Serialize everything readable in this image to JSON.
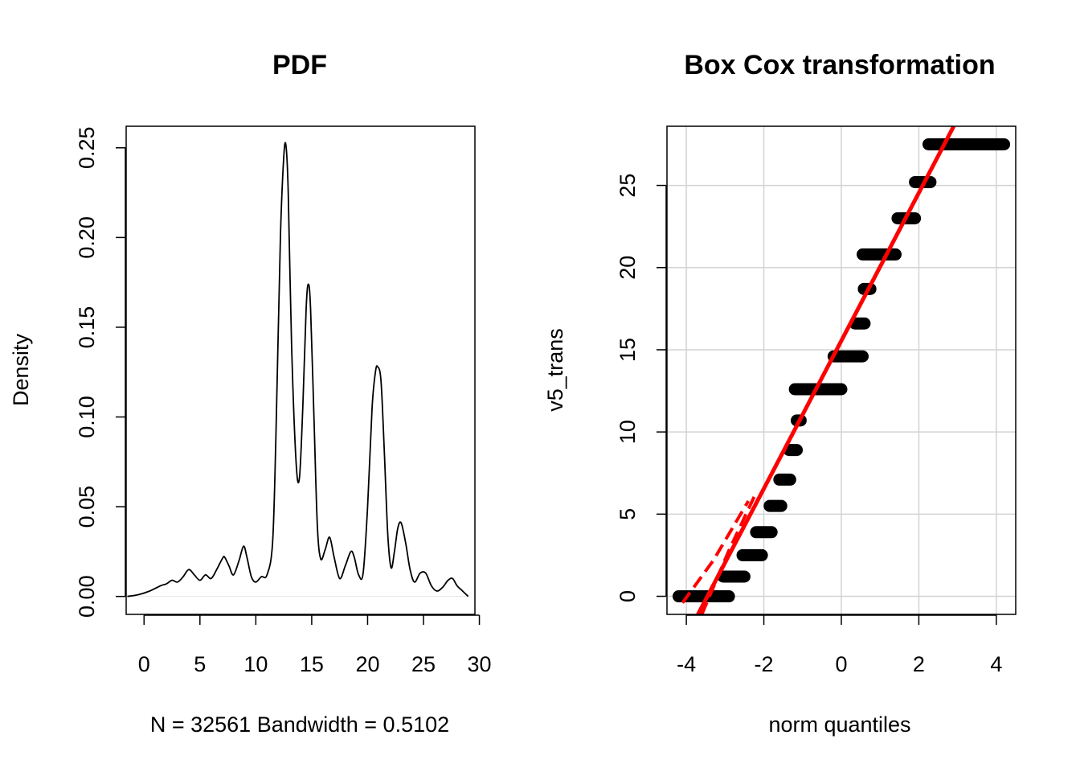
{
  "chart_data": [
    {
      "type": "line",
      "title": "PDF",
      "xlabel": "N = 32561   Bandwidth = 0.5102",
      "ylabel": "Density",
      "xlim": [
        -1.6,
        29.6
      ],
      "ylim": [
        -0.01,
        0.262
      ],
      "xticks": [
        "0",
        "5",
        "10",
        "15",
        "20",
        "25",
        "30"
      ],
      "yticks": [
        "0.00",
        "0.05",
        "0.10",
        "0.15",
        "0.20",
        "0.25"
      ],
      "grid": false,
      "series": [
        {
          "color": "#000000",
          "x": [
            -1.5,
            -0.5,
            0.5,
            1.5,
            2.0,
            2.5,
            3.0,
            3.5,
            4.0,
            4.5,
            5.0,
            5.5,
            6.0,
            6.5,
            7.0,
            7.2,
            7.6,
            8.0,
            8.5,
            8.9,
            9.2,
            9.6,
            10.0,
            10.5,
            11.0,
            11.5,
            11.8,
            12.2,
            12.5,
            12.7,
            12.9,
            13.2,
            13.6,
            13.9,
            14.2,
            14.5,
            14.7,
            14.9,
            15.2,
            15.5,
            15.8,
            16.2,
            16.6,
            17.0,
            17.5,
            18.0,
            18.5,
            18.8,
            19.2,
            19.6,
            20.0,
            20.4,
            20.7,
            20.9,
            21.2,
            21.5,
            21.8,
            22.1,
            22.4,
            22.7,
            23.0,
            23.4,
            23.8,
            24.2,
            24.7,
            25.2,
            25.7,
            26.2,
            26.7,
            27.2,
            27.6,
            28.0,
            28.5,
            29.0
          ],
          "y": [
            0.0,
            0.001,
            0.003,
            0.006,
            0.007,
            0.009,
            0.008,
            0.011,
            0.015,
            0.012,
            0.009,
            0.012,
            0.01,
            0.015,
            0.021,
            0.022,
            0.017,
            0.012,
            0.02,
            0.028,
            0.022,
            0.011,
            0.008,
            0.011,
            0.012,
            0.03,
            0.09,
            0.2,
            0.245,
            0.251,
            0.225,
            0.14,
            0.075,
            0.066,
            0.105,
            0.16,
            0.174,
            0.16,
            0.1,
            0.04,
            0.021,
            0.026,
            0.033,
            0.022,
            0.01,
            0.017,
            0.025,
            0.022,
            0.012,
            0.013,
            0.05,
            0.105,
            0.125,
            0.128,
            0.12,
            0.08,
            0.035,
            0.016,
            0.025,
            0.038,
            0.041,
            0.03,
            0.015,
            0.008,
            0.013,
            0.013,
            0.006,
            0.003,
            0.005,
            0.009,
            0.01,
            0.006,
            0.003,
            0.0
          ]
        }
      ]
    },
    {
      "type": "scatter",
      "title": "Box Cox transformation",
      "xlabel": "norm quantiles",
      "ylabel": "v5_trans",
      "xlim": [
        -4.5,
        4.5
      ],
      "ylim": [
        -1.1,
        28.6
      ],
      "xticks": [
        "-4",
        "-2",
        "0",
        "2",
        "4"
      ],
      "yticks": [
        "0",
        "5",
        "10",
        "15",
        "20",
        "25"
      ],
      "grid": true,
      "points_color": "#000000",
      "line_color": "#ff0000",
      "levels": [
        {
          "y": 0.0,
          "x_from": -4.2,
          "x_to": -2.9
        },
        {
          "y": 1.2,
          "x_from": -3.05,
          "x_to": -2.5
        },
        {
          "y": 2.5,
          "x_from": -2.55,
          "x_to": -2.05
        },
        {
          "y": 3.9,
          "x_from": -2.2,
          "x_to": -1.8
        },
        {
          "y": 5.5,
          "x_from": -1.85,
          "x_to": -1.55
        },
        {
          "y": 7.1,
          "x_from": -1.6,
          "x_to": -1.32
        },
        {
          "y": 8.9,
          "x_from": -1.35,
          "x_to": -1.15
        },
        {
          "y": 10.7,
          "x_from": -1.15,
          "x_to": -1.05
        },
        {
          "y": 12.6,
          "x_from": -1.2,
          "x_to": 0.0
        },
        {
          "y": 14.6,
          "x_from": -0.2,
          "x_to": 0.55
        },
        {
          "y": 16.6,
          "x_from": 0.35,
          "x_to": 0.6
        },
        {
          "y": 18.7,
          "x_from": 0.58,
          "x_to": 0.75
        },
        {
          "y": 20.8,
          "x_from": 0.55,
          "x_to": 1.4
        },
        {
          "y": 23.0,
          "x_from": 1.45,
          "x_to": 1.9
        },
        {
          "y": 25.2,
          "x_from": 1.9,
          "x_to": 2.3
        },
        {
          "y": 27.5,
          "x_from": 2.25,
          "x_to": 4.2
        }
      ],
      "line_points": [
        [
          -3.7,
          -1.1
        ],
        [
          2.9,
          28.6
        ]
      ],
      "band_lower": [
        [
          -3.6,
          -1.1
        ],
        [
          -2.9,
          2.8
        ],
        [
          -2.2,
          6.3
        ]
      ],
      "band_upper": [
        [
          -4.1,
          -0.4
        ],
        [
          -3.3,
          2.2
        ],
        [
          -2.4,
          5.8
        ]
      ]
    }
  ]
}
